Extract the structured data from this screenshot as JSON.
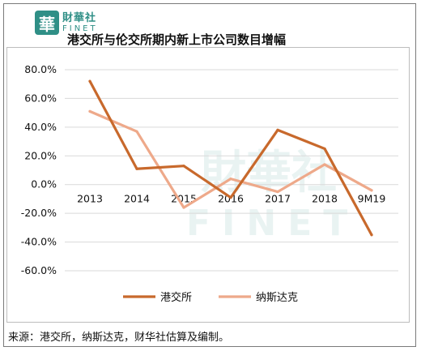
{
  "header": {
    "logo_seal": "華",
    "logo_cn": "財華社",
    "logo_en": "FINET",
    "title": "港交所与伦交所期内新上市公司数目增幅"
  },
  "watermark": {
    "cn": "財華社",
    "en": "FINET"
  },
  "footer": {
    "source": "来源：港交所，纳斯达克，财华社估算及编制。"
  },
  "chart_data": {
    "type": "line",
    "title": "港交所与伦交所期内新上市公司数目增幅",
    "categories": [
      "2013",
      "2014",
      "2015",
      "2016",
      "2017",
      "2018",
      "9M19"
    ],
    "y_tick_labels": [
      "80.0%",
      "60.0%",
      "40.0%",
      "20.0%",
      "0.0%",
      "-20.0%",
      "-40.0%",
      "-60.0%"
    ],
    "y_ticks": [
      80,
      60,
      40,
      20,
      0,
      -20,
      -40,
      -60
    ],
    "ylim": [
      -60,
      80
    ],
    "grid": "horizontal",
    "legend_position": "bottom",
    "series": [
      {
        "name": "港交所",
        "color": "#c8692c",
        "values": [
          72,
          11,
          13,
          -9,
          38,
          25,
          -35
        ]
      },
      {
        "name": "纳斯达克",
        "color": "#eea98a",
        "values": [
          51,
          37,
          -16,
          4,
          -5,
          14,
          -4
        ]
      }
    ]
  }
}
